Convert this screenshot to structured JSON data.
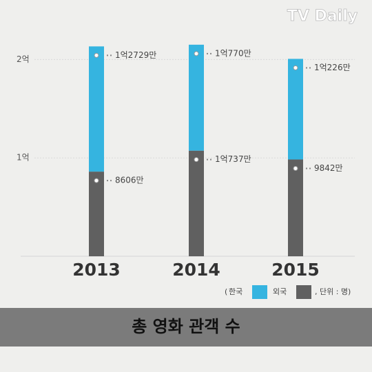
{
  "chart_data": {
    "type": "bar",
    "stacked": true,
    "title": "총 영화 관객 수",
    "watermark": "TV Daily",
    "categories": [
      "2013",
      "2014",
      "2015"
    ],
    "series": [
      {
        "name": "외국",
        "color": "#606060",
        "values": [
          86060000,
          107370000,
          98420000
        ],
        "value_labels": [
          "8606만",
          "1억737만",
          "9842만"
        ]
      },
      {
        "name": "한국",
        "color": "#35b4e0",
        "values": [
          127290000,
          107700000,
          102260000
        ],
        "value_labels": [
          "1억2729만",
          "1억770만",
          "1억226만"
        ]
      }
    ],
    "legend_prefix": "(",
    "unit_label": ", 단위 : 명)",
    "ylim": [
      0,
      222000000
    ],
    "yticks": [
      {
        "value": 100000000,
        "label": "1억"
      },
      {
        "value": 200000000,
        "label": "2억"
      }
    ],
    "grid": true
  }
}
